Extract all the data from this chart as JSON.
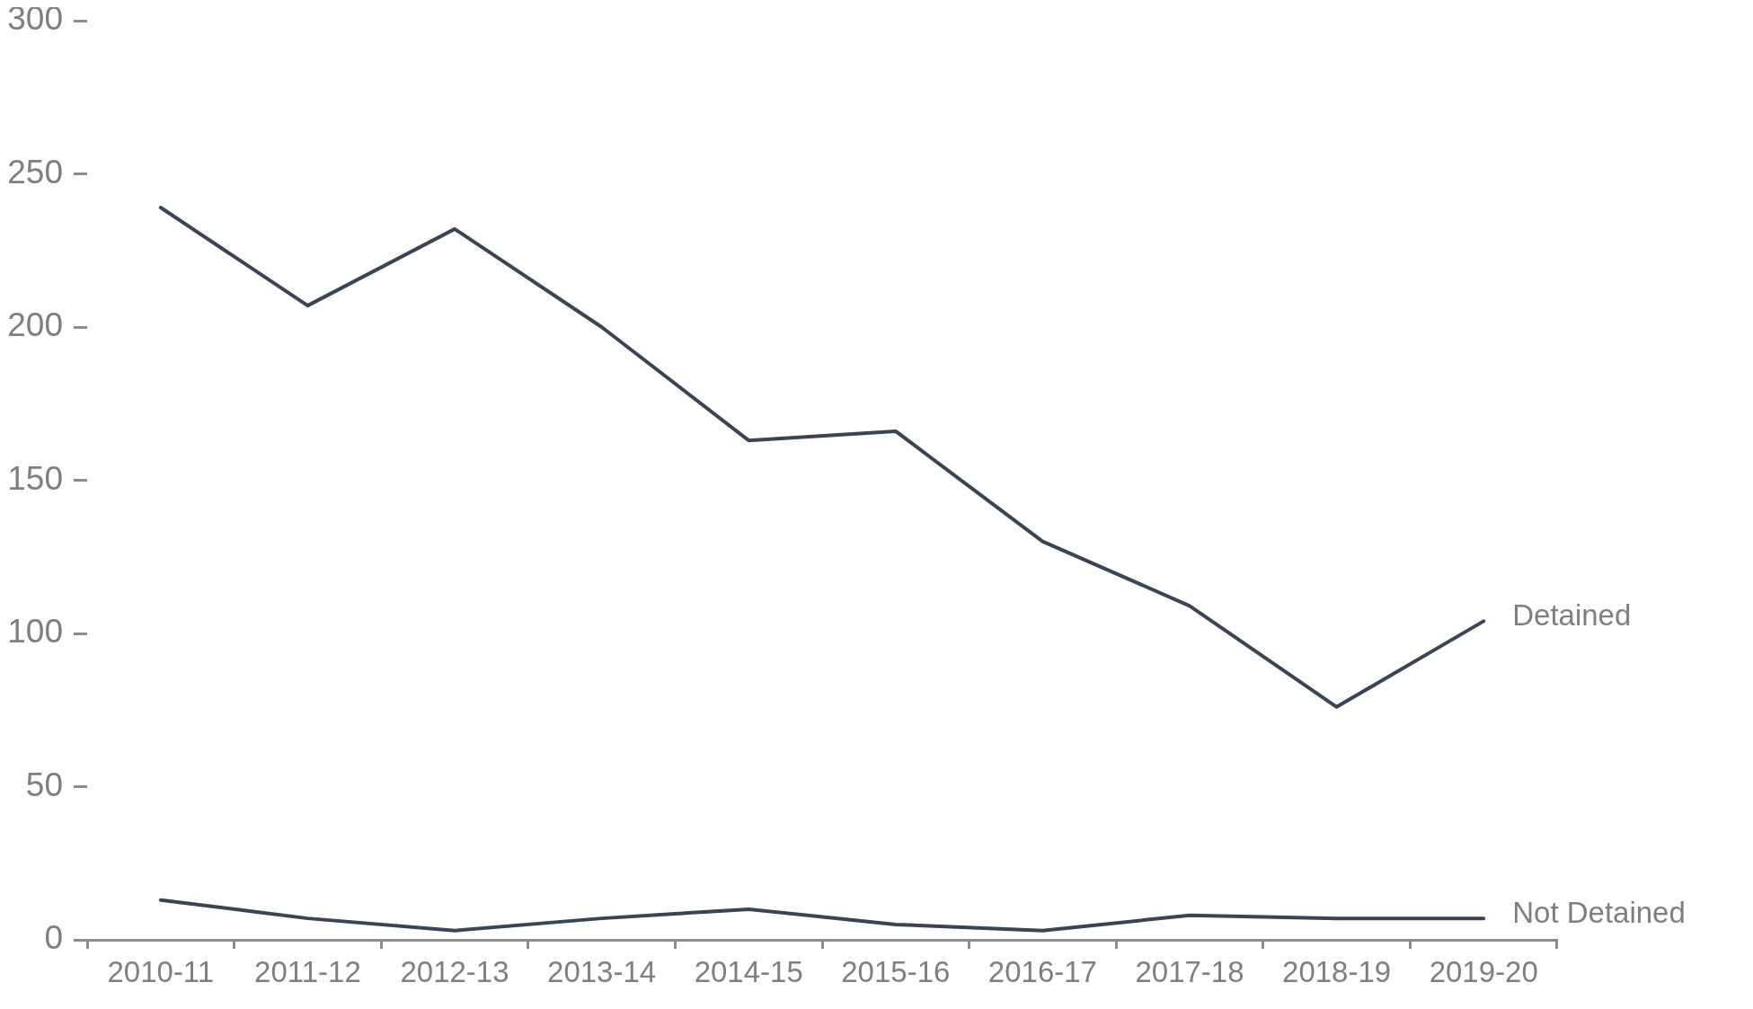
{
  "chart_data": {
    "type": "line",
    "categories": [
      "2010-11",
      "2011-12",
      "2012-13",
      "2013-14",
      "2014-15",
      "2015-16",
      "2016-17",
      "2017-18",
      "2018-19",
      "2019-20"
    ],
    "series": [
      {
        "name": "Detained",
        "color": "#3a4453",
        "values": [
          239,
          207,
          232,
          200,
          163,
          166,
          130,
          109,
          76,
          104
        ]
      },
      {
        "name": "Not Detained",
        "color": "#3a4453",
        "values": [
          13,
          7,
          3,
          7,
          10,
          5,
          3,
          8,
          7,
          7
        ]
      }
    ],
    "ylim": [
      0,
      300
    ],
    "yticks": [
      0,
      50,
      100,
      150,
      200,
      250,
      300
    ],
    "grid": false,
    "legend": false,
    "marker": "none",
    "line_style": "solid"
  }
}
